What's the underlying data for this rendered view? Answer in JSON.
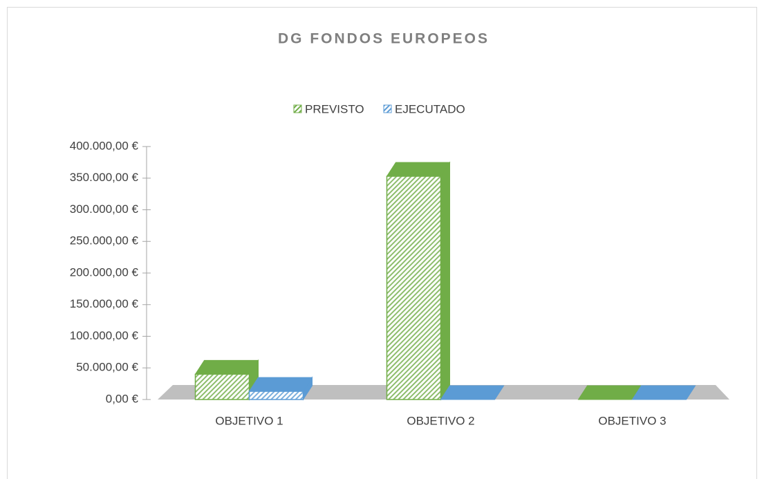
{
  "chart_data": {
    "type": "bar3d",
    "title": "DG FONDOS EUROPEOS",
    "categories": [
      "OBJETIVO 1",
      "OBJETIVO 2",
      "OBJETIVO 3"
    ],
    "series": [
      {
        "name": "PREVISTO",
        "color": "#70ad47",
        "values": [
          40000,
          353000,
          0
        ]
      },
      {
        "name": "EJECUTADO",
        "color": "#5b9bd5",
        "values": [
          13000,
          0,
          0
        ]
      }
    ],
    "ylim": [
      0,
      400000
    ],
    "yticks": [
      {
        "value": 0,
        "label": "0,00 €"
      },
      {
        "value": 50000,
        "label": "50.000,00 €"
      },
      {
        "value": 100000,
        "label": "100.000,00 €"
      },
      {
        "value": 150000,
        "label": "150.000,00 €"
      },
      {
        "value": 200000,
        "label": "200.000,00 €"
      },
      {
        "value": 250000,
        "label": "250.000,00 €"
      },
      {
        "value": 300000,
        "label": "300.000,00 €"
      },
      {
        "value": 350000,
        "label": "350.000,00 €"
      },
      {
        "value": 400000,
        "label": "400.000,00 €"
      }
    ],
    "legend": "top"
  }
}
